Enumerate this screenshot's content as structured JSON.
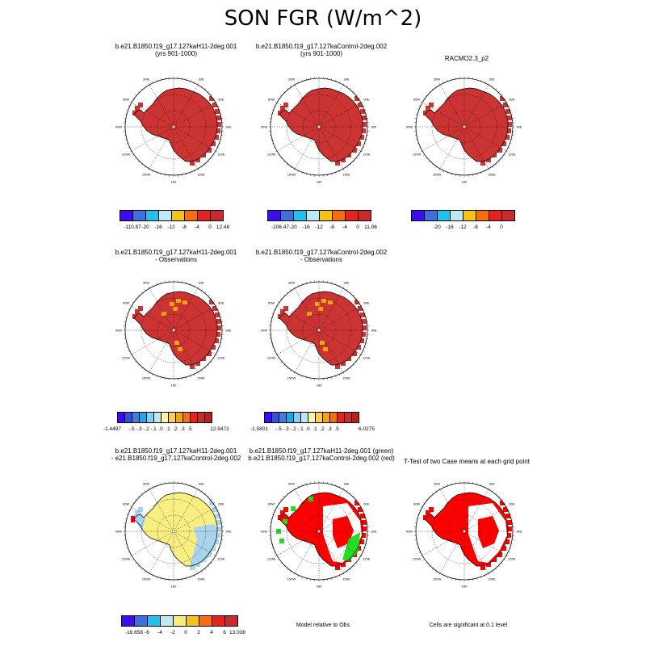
{
  "page_title": "SON FGR (W/m^2)",
  "panels": [
    {
      "line1": "b.e21.B1850.f19_g17.127kaH11-2deg.001",
      "line2": "(yrs 901-1000)"
    },
    {
      "line1": "b.e21.B1850.f19_g17.127kaControl-2deg.002",
      "line2": "(yrs 901-1000)"
    },
    {
      "line1": "RACMO2.3_p2",
      "line2": ""
    },
    {
      "line1": "b.e21.B1850.f19_g17.127kaH11-2deg.001",
      "line2": "- Observations"
    },
    {
      "line1": "b.e21.B1850.f19_g17.127kaControl-2deg.002",
      "line2": "- Observations"
    },
    {
      "line1": "b.e21.B1850.f19_g17.127kaH11-2deg.001",
      "line2": "- e21.B1850.f19_g17.127kaControl-2deg.002"
    },
    {
      "line1": "b.e21.B1850.f19_g17.127kaH11-2deg.001 (green)",
      "line2": "b.e21.B1850.f19_g17.127kaControl-2deg.002 (red)"
    },
    {
      "line1": "T-Test of two Case means at each grid point",
      "line2": ""
    }
  ],
  "map_labels": {
    "lon": [
      "30W",
      "30E",
      "60W",
      "60E",
      "90W",
      "90E",
      "120W",
      "120E",
      "150W",
      "150E",
      "180"
    ]
  },
  "colorbars": [
    {
      "colors": [
        "#3d0cf2",
        "#3f6fde",
        "#1ec2ec",
        "#bde8f5",
        "#f5c316",
        "#f96c11",
        "#e8211c",
        "#cb2a2c"
      ],
      "labels": [
        "-110.87",
        "-20",
        "-16",
        "-12",
        "-8",
        "-4",
        "0",
        "12.48"
      ]
    },
    {
      "colors": [
        "#3d0cf2",
        "#3f6fde",
        "#1ec2ec",
        "#bde8f5",
        "#f5c316",
        "#f96c11",
        "#e8211c",
        "#cb2a2c"
      ],
      "labels": [
        "-106.47",
        "-20",
        "-16",
        "-12",
        "-8",
        "-4",
        "0",
        "11.06"
      ]
    },
    {
      "colors": [
        "#3d0cf2",
        "#3f6fde",
        "#1ec2ec",
        "#bde8f5",
        "#f5c316",
        "#f96c11",
        "#e8211c",
        "#cb2a2c"
      ],
      "labels": [
        "-20",
        "-16",
        "-12",
        "-8",
        "-4",
        "0"
      ]
    },
    {
      "colors": [
        "#3d0cf2",
        "#2f4fe6",
        "#3f7fdc",
        "#1ea6ec",
        "#7fd0f0",
        "#bde8f5",
        "#fff3a6",
        "#f9d24a",
        "#f5a316",
        "#f96c11",
        "#e8211c",
        "#cb2a2c",
        "#b8201f"
      ],
      "labels": [
        "-1.4497",
        "-.5",
        "-.3",
        "-.2",
        "-.1",
        ".0",
        ".1",
        ".2",
        ".3",
        ".5",
        "12.9472"
      ]
    },
    {
      "colors": [
        "#3d0cf2",
        "#2f4fe6",
        "#3f7fdc",
        "#1ea6ec",
        "#7fd0f0",
        "#bde8f5",
        "#fff3a6",
        "#f9d24a",
        "#f5a316",
        "#f96c11",
        "#e8211c",
        "#cb2a2c",
        "#b8201f"
      ],
      "labels": [
        "-1.5801",
        "-.5",
        "-.3",
        "-.2",
        "-.1",
        ".0",
        ".1",
        ".2",
        ".3",
        ".5",
        "6.0275"
      ]
    },
    {
      "colors": [
        "#3d0cf2",
        "#3f6fde",
        "#1ec2ec",
        "#bde8f5",
        "#f7ee7a",
        "#f5c316",
        "#f96c11",
        "#e8211c",
        "#cb2a2c"
      ],
      "labels": [
        "-16.658",
        "-6",
        "-4",
        "-2",
        "0",
        "2",
        "4",
        "6",
        "13.038"
      ]
    }
  ],
  "notes": {
    "model_relative": "Model relative to Obs",
    "significance": "Cells are significant at 0.1 level"
  },
  "fill_colors": {
    "red_dark": "#cc3333",
    "red_bright": "#ff0000",
    "yellow": "#f9ee82",
    "light_blue": "#a9d4ee",
    "green": "#22dd22",
    "orange": "#f5a316"
  }
}
